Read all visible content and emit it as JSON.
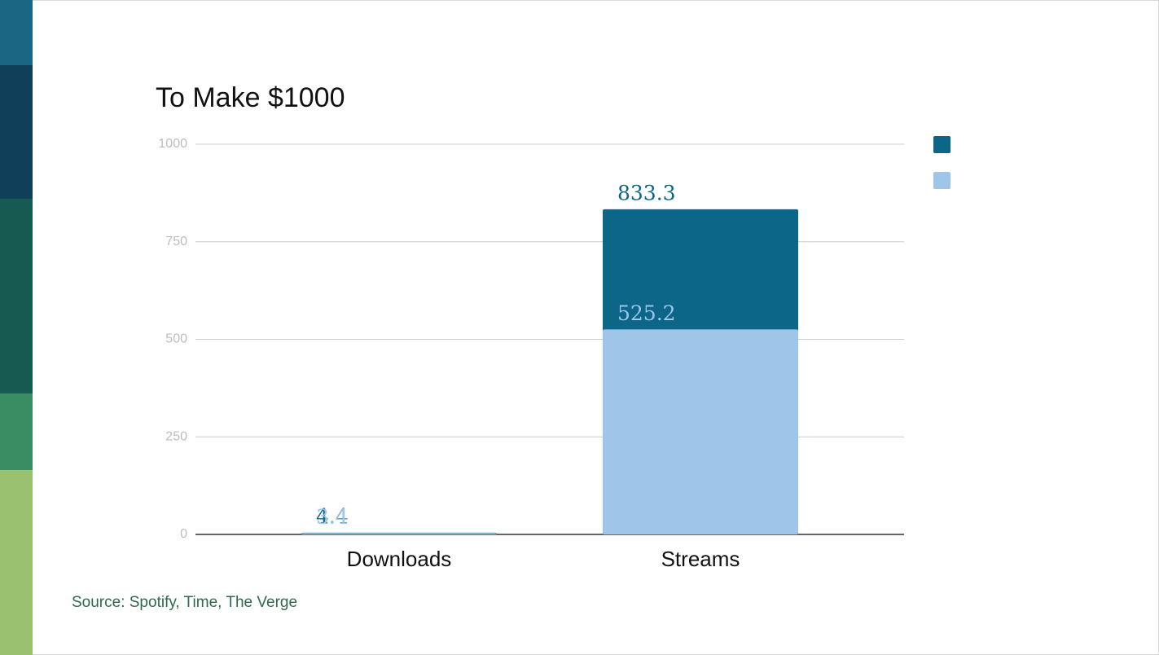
{
  "chart_data": {
    "type": "bar",
    "barmode": "overlay",
    "title": "To Make $1000",
    "categories": [
      "Downloads",
      "Streams"
    ],
    "series": [
      {
        "color": "#0b6688",
        "values": [
          4.4,
          833.3
        ]
      },
      {
        "color": "#9fc5e8",
        "values": [
          3.4,
          525.2
        ]
      }
    ],
    "ylim": [
      0,
      1000
    ],
    "yticks": [
      0,
      250,
      500,
      750,
      1000
    ],
    "grid": true,
    "legend": "right",
    "source": "Source: Spotify, Time, The Verge"
  }
}
